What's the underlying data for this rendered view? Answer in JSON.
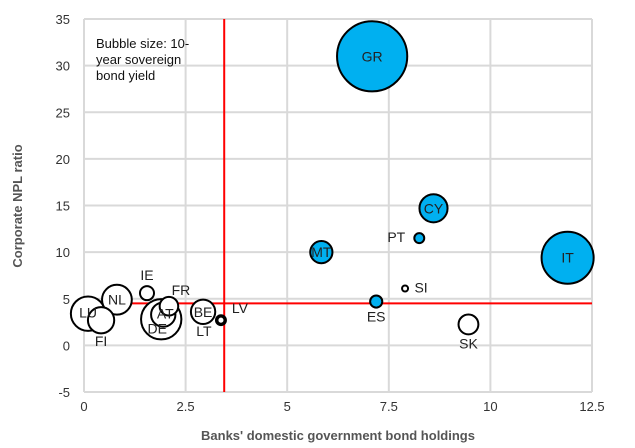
{
  "chart_data": {
    "type": "bubble",
    "xlabel": "Banks' domestic government bond holdings",
    "ylabel": "Corporate NPL ratio",
    "xlim": [
      0,
      12.5
    ],
    "ylim": [
      -5,
      35
    ],
    "xticks": [
      "0",
      "2.5",
      "5",
      "7.5",
      "10",
      "12.5"
    ],
    "xtick_values": [
      0,
      2.5,
      5,
      7.5,
      10,
      12.5
    ],
    "yticks": [
      "-5",
      "0",
      "5",
      "10",
      "15",
      "20",
      "25",
      "30",
      "35"
    ],
    "ytick_values": [
      -5,
      0,
      5,
      10,
      15,
      20,
      25,
      30,
      35
    ],
    "grid": true,
    "annotation": [
      "Bubble size: 10-",
      "year sovereign",
      "bond yield"
    ],
    "reference_lines": {
      "x": 3.45,
      "y": 4.5,
      "color": "#ff0000"
    },
    "colors": {
      "highlight": "#00b0f0",
      "other": "#ffffff",
      "stroke": "#000000",
      "grid": "#d9d9d9"
    },
    "points": [
      {
        "label": "GR",
        "x": 7.09,
        "y": 31.0,
        "size": 10.0,
        "highlight": true
      },
      {
        "label": "CY",
        "x": 8.6,
        "y": 14.7,
        "size": 1.6,
        "highlight": true
      },
      {
        "label": "PT",
        "x": 8.25,
        "y": 11.5,
        "size": 0.2,
        "highlight": true
      },
      {
        "label": "MT",
        "x": 5.84,
        "y": 10.0,
        "size": 1.0,
        "highlight": true
      },
      {
        "label": "IT",
        "x": 11.9,
        "y": 9.4,
        "size": 5.5,
        "highlight": true
      },
      {
        "label": "SI",
        "x": 7.9,
        "y": 6.1,
        "size": 0.07,
        "highlight": false
      },
      {
        "label": "ES",
        "x": 7.19,
        "y": 4.7,
        "size": 0.3,
        "highlight": true
      },
      {
        "label": "SK",
        "x": 9.46,
        "y": 2.25,
        "size": 0.8,
        "highlight": false
      },
      {
        "label": "LT",
        "x": 3.37,
        "y": 2.7,
        "size": 0.2,
        "highlight": true
      },
      {
        "label": "LV",
        "x": 3.37,
        "y": 2.7,
        "size": 0.1,
        "highlight": false
      },
      {
        "label": "NL",
        "x": 0.81,
        "y": 4.9,
        "size": 1.8,
        "highlight": false
      },
      {
        "label": "IE",
        "x": 1.55,
        "y": 5.6,
        "size": 0.4,
        "highlight": false
      },
      {
        "label": "LU",
        "x": 0.1,
        "y": 3.4,
        "size": 2.4,
        "highlight": false
      },
      {
        "label": "FI",
        "x": 0.42,
        "y": 2.7,
        "size": 1.4,
        "highlight": false
      },
      {
        "label": "DE",
        "x": 1.9,
        "y": 2.8,
        "size": 3.3,
        "highlight": false
      },
      {
        "label": "AT",
        "x": 1.95,
        "y": 3.3,
        "size": 1.2,
        "highlight": false
      },
      {
        "label": "FR",
        "x": 2.09,
        "y": 4.2,
        "size": 0.7,
        "highlight": false
      },
      {
        "label": "BE",
        "x": 2.93,
        "y": 3.6,
        "size": 1.2,
        "highlight": false
      }
    ]
  }
}
